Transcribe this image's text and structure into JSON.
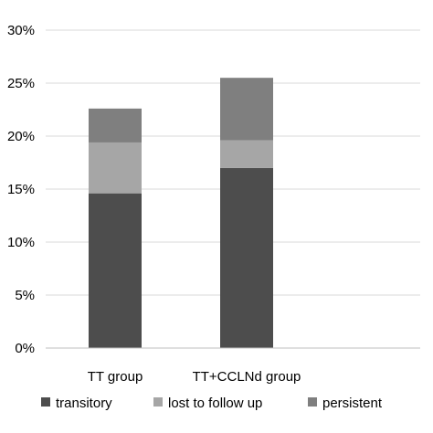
{
  "chart_data": {
    "type": "bar",
    "stacked": true,
    "categories": [
      "TT group",
      "TT+CCLNd group"
    ],
    "series": [
      {
        "name": "transitory",
        "values": [
          14.6,
          17.0
        ],
        "color": "#4d4d4d"
      },
      {
        "name": "lost to follow up",
        "values": [
          4.8,
          2.6
        ],
        "color": "#a6a6a6"
      },
      {
        "name": "persistent",
        "values": [
          3.2,
          5.9
        ],
        "color": "#7f7f7f"
      }
    ],
    "y_ticks": [
      "0%",
      "5%",
      "10%",
      "15%",
      "20%",
      "25%",
      "30%"
    ],
    "ylim": [
      0,
      30
    ],
    "grid": true,
    "legend_position": "bottom"
  }
}
